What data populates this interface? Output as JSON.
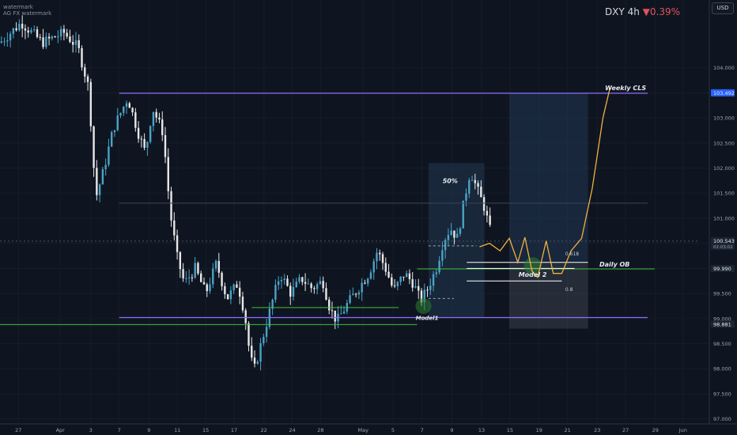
{
  "header": {
    "watermark_line1": "watermark",
    "watermark_line2": "AG FX watermark",
    "symbol": "DXY",
    "interval": "4h",
    "change": "▼0.39%",
    "currency": "USD"
  },
  "chart_data": {
    "type": "candlestick",
    "symbol": "DXY",
    "interval": "4h",
    "y_axis": {
      "range": [
        96.9,
        105.35
      ],
      "ticks": [
        97.0,
        97.5,
        98.0,
        98.5,
        99.0,
        99.5,
        100.0,
        100.5,
        101.0,
        101.5,
        102.0,
        102.5,
        103.0,
        103.5,
        104.0
      ],
      "tick_labels": [
        "97.000",
        "97.500",
        "98.000",
        "98.500",
        "99.000",
        "99.500",
        "100.000",
        "100.500",
        "101.000",
        "101.500",
        "102.000",
        "102.500",
        "103.000",
        "103.500",
        "104.000"
      ]
    },
    "x_axis": {
      "ticks": [
        {
          "label": "27",
          "pos": 0.026
        },
        {
          "label": "Apr",
          "pos": 0.085
        },
        {
          "label": "3",
          "pos": 0.128
        },
        {
          "label": "7",
          "pos": 0.168
        },
        {
          "label": "9",
          "pos": 0.21
        },
        {
          "label": "11",
          "pos": 0.25
        },
        {
          "label": "15",
          "pos": 0.29
        },
        {
          "label": "17",
          "pos": 0.33
        },
        {
          "label": "22",
          "pos": 0.372
        },
        {
          "label": "24",
          "pos": 0.412
        },
        {
          "label": "28",
          "pos": 0.452
        },
        {
          "label": "May",
          "pos": 0.512
        },
        {
          "label": "5",
          "pos": 0.554
        },
        {
          "label": "7",
          "pos": 0.595
        },
        {
          "label": "9",
          "pos": 0.637
        },
        {
          "label": "13",
          "pos": 0.679
        },
        {
          "label": "15",
          "pos": 0.719
        },
        {
          "label": "19",
          "pos": 0.76
        },
        {
          "label": "21",
          "pos": 0.8
        },
        {
          "label": "23",
          "pos": 0.842
        },
        {
          "label": "27",
          "pos": 0.882
        },
        {
          "label": "29",
          "pos": 0.924
        },
        {
          "label": "Jun",
          "pos": 0.963
        }
      ]
    },
    "price_path": [
      [
        0.0,
        104.5
      ],
      [
        0.03,
        104.9
      ],
      [
        0.06,
        104.5
      ],
      [
        0.09,
        104.7
      ],
      [
        0.11,
        104.4
      ],
      [
        0.125,
        103.6
      ],
      [
        0.135,
        101.4
      ],
      [
        0.145,
        101.9
      ],
      [
        0.16,
        102.8
      ],
      [
        0.18,
        103.4
      ],
      [
        0.195,
        102.7
      ],
      [
        0.205,
        102.3
      ],
      [
        0.215,
        103.2
      ],
      [
        0.23,
        102.7
      ],
      [
        0.24,
        101.1
      ],
      [
        0.25,
        100.2
      ],
      [
        0.26,
        99.7
      ],
      [
        0.275,
        100.0
      ],
      [
        0.29,
        99.5
      ],
      [
        0.305,
        100.1
      ],
      [
        0.32,
        99.4
      ],
      [
        0.335,
        99.7
      ],
      [
        0.345,
        99.1
      ],
      [
        0.352,
        98.3
      ],
      [
        0.358,
        97.95
      ],
      [
        0.37,
        98.6
      ],
      [
        0.385,
        99.4
      ],
      [
        0.395,
        99.9
      ],
      [
        0.41,
        99.5
      ],
      [
        0.425,
        99.8
      ],
      [
        0.44,
        99.6
      ],
      [
        0.455,
        99.75
      ],
      [
        0.465,
        99.2
      ],
      [
        0.475,
        98.95
      ],
      [
        0.49,
        99.3
      ],
      [
        0.505,
        99.6
      ],
      [
        0.52,
        99.9
      ],
      [
        0.532,
        100.35
      ],
      [
        0.545,
        99.95
      ],
      [
        0.555,
        99.55
      ],
      [
        0.57,
        99.9
      ],
      [
        0.583,
        99.7
      ],
      [
        0.593,
        99.35
      ],
      [
        0.603,
        99.6
      ],
      [
        0.615,
        100.0
      ],
      [
        0.625,
        100.55
      ],
      [
        0.635,
        100.8
      ],
      [
        0.645,
        100.6
      ],
      [
        0.655,
        101.4
      ],
      [
        0.663,
        101.95
      ],
      [
        0.672,
        101.6
      ],
      [
        0.682,
        101.25
      ],
      [
        0.692,
        100.7
      ]
    ],
    "annotations": [
      {
        "text": "Weekly CLS",
        "level": 103.492
      },
      {
        "text": "Daily OB",
        "level": 99.99
      },
      {
        "text": "50%"
      },
      {
        "text": "Model 2"
      },
      {
        "text": "Model1"
      },
      {
        "text": "0.618"
      },
      {
        "text": "0.8"
      }
    ],
    "price_labels": [
      {
        "text": "103.492",
        "level": 103.492,
        "color": "#2962ff"
      },
      {
        "text": "100.543",
        "sub": "02:03:02",
        "level": 100.543,
        "color": "#1c2533"
      },
      {
        "text": "99.990",
        "level": 99.99,
        "color": "#1c2533"
      },
      {
        "text": "98.881",
        "level": 98.881,
        "color": "#1c2533"
      }
    ],
    "projection_path": [
      [
        0.676,
        100.43
      ],
      [
        0.69,
        100.5
      ],
      [
        0.705,
        100.35
      ],
      [
        0.718,
        100.6
      ],
      [
        0.73,
        100.12
      ],
      [
        0.74,
        100.62
      ],
      [
        0.75,
        99.95
      ],
      [
        0.758,
        99.82
      ],
      [
        0.77,
        100.55
      ],
      [
        0.78,
        99.9
      ],
      [
        0.792,
        99.9
      ],
      [
        0.805,
        100.35
      ],
      [
        0.82,
        100.6
      ],
      [
        0.835,
        101.6
      ],
      [
        0.85,
        103.0
      ],
      [
        0.86,
        103.6
      ]
    ]
  }
}
